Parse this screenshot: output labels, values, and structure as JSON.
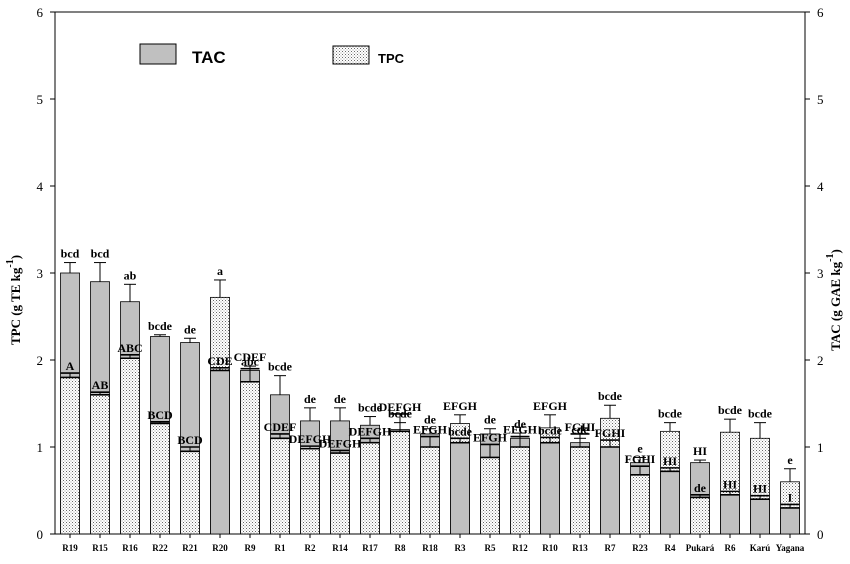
{
  "chart_data": {
    "type": "bar",
    "title": "",
    "ylabel_left": "TPC (g TE kg",
    "ylabel_left_sup": "-1",
    "ylabel_left_close": ")",
    "ylabel_right": "TAC (g GAE kg",
    "ylabel_right_sup": "-1",
    "ylabel_right_close": ")",
    "ylim": [
      0,
      6
    ],
    "yticks": [
      "0",
      "1",
      "2",
      "3",
      "4",
      "5",
      "6"
    ],
    "legend": [
      {
        "name": "TAC",
        "pattern": "solid-gray"
      },
      {
        "name": "TPC",
        "pattern": "dotted"
      }
    ],
    "legend_position": "top-left",
    "categories": [
      "R19",
      "R15",
      "R16",
      "R22",
      "R21",
      "R20",
      "R9",
      "R1",
      "R2",
      "R14",
      "R17",
      "R8",
      "R18",
      "R3",
      "R5",
      "R12",
      "R10",
      "R13",
      "R7",
      "R23",
      "R4",
      "Pukará",
      "R6",
      "Karú",
      "Yagana"
    ],
    "series": [
      {
        "name": "TAC",
        "values": [
          3.0,
          2.9,
          2.67,
          2.27,
          2.2,
          1.88,
          1.88,
          1.6,
          1.3,
          1.3,
          1.25,
          1.2,
          1.15,
          1.05,
          1.15,
          1.1,
          1.05,
          1.05,
          1.0,
          0.82,
          0.72,
          0.82,
          0.45,
          0.4,
          0.3
        ],
        "errors": [
          0.12,
          0.22,
          0.2,
          0.02,
          0.05,
          0.03,
          0.05,
          0.22,
          0.15,
          0.15,
          0.1,
          0.08,
          0.06,
          0.05,
          0.06,
          0.06,
          0.06,
          0.05,
          0.08,
          0.06,
          0.04,
          0.03,
          0.04,
          0.04,
          0.04
        ],
        "labels": [
          "bcd",
          "bcd",
          "ab",
          "bcde",
          "de",
          "CDE",
          "CDEF",
          "bcde",
          "de",
          "de",
          "bcde",
          "bcde",
          "de",
          "bcde",
          "de",
          "de",
          "bcde",
          "cde",
          "FGHI",
          "e",
          "HI",
          "HI",
          "HI",
          "HI",
          "I"
        ]
      },
      {
        "name": "TPC",
        "values": [
          1.8,
          1.6,
          2.02,
          1.27,
          0.95,
          2.72,
          1.75,
          1.1,
          0.98,
          0.93,
          1.05,
          1.18,
          1.0,
          1.27,
          0.88,
          1.0,
          1.22,
          1.0,
          1.33,
          0.68,
          1.18,
          0.42,
          1.17,
          1.1,
          0.6
        ],
        "errors": [
          0.05,
          0.03,
          0.04,
          0.02,
          0.05,
          0.2,
          0.15,
          0.05,
          0.03,
          0.03,
          0.05,
          0.2,
          0.12,
          0.1,
          0.15,
          0.12,
          0.15,
          0.15,
          0.15,
          0.1,
          0.1,
          0.03,
          0.15,
          0.18,
          0.15
        ],
        "labels": [
          "A",
          "AB",
          "ABC",
          "BCD",
          "BCD",
          "a",
          "abc",
          "CDEF",
          "DEFGH",
          "DEFGH",
          "DEFGH",
          "DEFGH",
          "EFGH",
          "EFGH",
          "EFGH",
          "EFGH",
          "EFGH",
          "FGHI",
          "bcde",
          "FGHI",
          "bcde",
          "de",
          "bcde",
          "bcde",
          "e"
        ]
      }
    ]
  }
}
